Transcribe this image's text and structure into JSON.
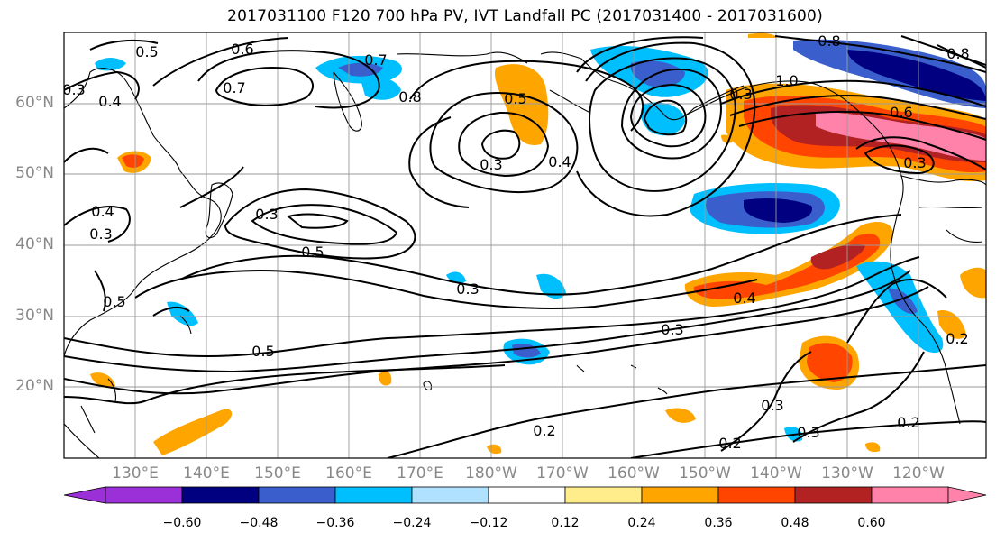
{
  "title": "2017031100 F120 700 hPa PV, IVT Landfall PC (2017031400 - 2017031600)",
  "lat_labels": [
    "60°N",
    "50°N",
    "40°N",
    "30°N",
    "20°N"
  ],
  "lon_labels": [
    "130°E",
    "140°E",
    "150°E",
    "160°E",
    "170°E",
    "180°W",
    "170°W",
    "160°W",
    "150°W",
    "140°W",
    "130°W",
    "120°W"
  ],
  "colorbar": {
    "labels": [
      "−0.60",
      "−0.48",
      "−0.36",
      "−0.24",
      "−0.12",
      "0.12",
      "0.24",
      "0.36",
      "0.48",
      "0.60"
    ],
    "colors": [
      "#9b30d9",
      "#000080",
      "#3a5fcd",
      "#00bfff",
      "#b0e2ff",
      "#ffffff",
      "#ffec8b",
      "#ffa500",
      "#ff4500",
      "#b22222",
      "#ff82ab"
    ]
  },
  "contour_labels": [
    "0.5",
    "0.6",
    "0.7",
    "0.7",
    "0.8",
    "0.3",
    "0.4",
    "0.5",
    "0.3",
    "0.4",
    "1.0",
    "0.6",
    "0.3",
    "0.8",
    "0.8",
    "0.3",
    "0.4",
    "0.3",
    "0.5",
    "0.3",
    "0.5",
    "0.3",
    "0.5",
    "0.4",
    "0.3",
    "0.2",
    "0.2",
    "0.2",
    "0.3",
    "0.3",
    "0.2"
  ]
}
